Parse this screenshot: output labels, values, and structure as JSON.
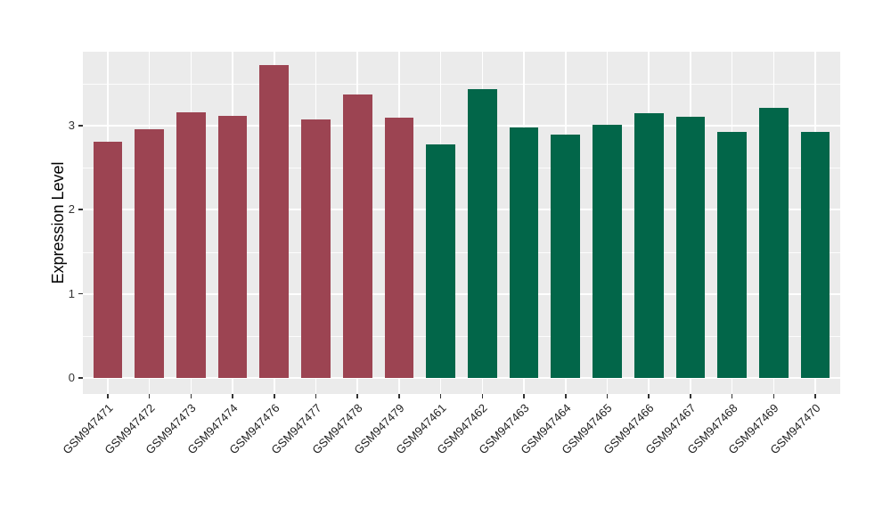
{
  "figure": {
    "background": "#FFFFFF",
    "panel_background": "#EBEBEB",
    "gridline_color": "#FFFFFF",
    "tick_mark_color": "#333333",
    "tick_text_color": "#333333",
    "axis_title_color": "#000000"
  },
  "chart_data": {
    "type": "bar",
    "title": "",
    "xlabel": "",
    "ylabel": "Expression Level",
    "categories": [
      "GSM947471",
      "GSM947472",
      "GSM947473",
      "GSM947474",
      "GSM947476",
      "GSM947477",
      "GSM947478",
      "GSM947479",
      "GSM947461",
      "GSM947462",
      "GSM947463",
      "GSM947464",
      "GSM947465",
      "GSM947466",
      "GSM947467",
      "GSM947468",
      "GSM947469",
      "GSM947470"
    ],
    "values": [
      2.81,
      2.96,
      3.16,
      3.12,
      3.72,
      3.07,
      3.37,
      3.1,
      2.78,
      3.44,
      2.98,
      2.89,
      3.01,
      3.15,
      3.11,
      2.93,
      3.21,
      2.93
    ],
    "groups": [
      "A",
      "A",
      "A",
      "A",
      "A",
      "A",
      "A",
      "A",
      "B",
      "B",
      "B",
      "B",
      "B",
      "B",
      "B",
      "B",
      "B",
      "B"
    ],
    "group_colors": {
      "A": "#9C4452",
      "B": "#026649"
    },
    "yticks": [
      "0",
      "1",
      "2",
      "3"
    ],
    "ytick_values": [
      0,
      1,
      2,
      3
    ],
    "minor_gridlines": [
      0.5,
      1.5,
      2.5,
      3.5
    ],
    "ylim": [
      -0.19,
      3.88
    ],
    "grid": "on",
    "legend": "none",
    "bar_label_rotation_deg": 45
  }
}
